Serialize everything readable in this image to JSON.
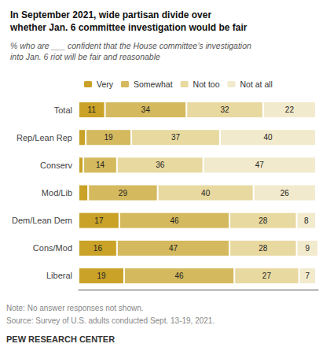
{
  "chart_data": {
    "type": "bar",
    "orientation": "horizontal",
    "stacked": true,
    "title": "In September 2021, wide partisan divide over\nwhether Jan. 6 committee investigation would be fair",
    "subtitle": "% who are ___ confident that the House committee’s investigation\ninto Jan. 6 riot will be fair and reasonable",
    "annotations": [
      "Note: No answer responses not shown.",
      "Source: Survey of U.S. adults conducted Sept. 13-19, 2021.",
      "PEW RESEARCH CENTER"
    ],
    "categories": [
      "Total",
      "Rep/Lean Rep",
      "Conserv",
      "Mod/Lib",
      "Dem/Lean Dem",
      "Cons/Mod",
      "Liberal"
    ],
    "series": [
      {
        "name": "Very",
        "color": "#c9a227",
        "values": [
          11,
          3,
          2,
          4,
          17,
          16,
          19
        ],
        "value_labels": [
          "11",
          null,
          null,
          null,
          "17",
          "16",
          "19"
        ]
      },
      {
        "name": "Somewhat",
        "color": "#d4b95e",
        "values": [
          34,
          19,
          14,
          29,
          46,
          47,
          46
        ],
        "value_labels": [
          "34",
          "19",
          "14",
          "29",
          "46",
          "47",
          "46"
        ]
      },
      {
        "name": "Not too",
        "color": "#e8d9a0",
        "values": [
          32,
          37,
          36,
          40,
          28,
          28,
          27
        ],
        "value_labels": [
          "32",
          "37",
          "36",
          "40",
          "28",
          "28",
          "27"
        ]
      },
      {
        "name": "Not at all",
        "color": "#f2eacc",
        "values": [
          22,
          40,
          47,
          26,
          8,
          9,
          7
        ],
        "value_labels": [
          "22",
          "40",
          "47",
          "26",
          "8",
          "9",
          "7"
        ]
      }
    ],
    "xlim": [
      0,
      100
    ],
    "data_labels": true,
    "tick_labels": "y",
    "grid": false,
    "legend": "top"
  }
}
